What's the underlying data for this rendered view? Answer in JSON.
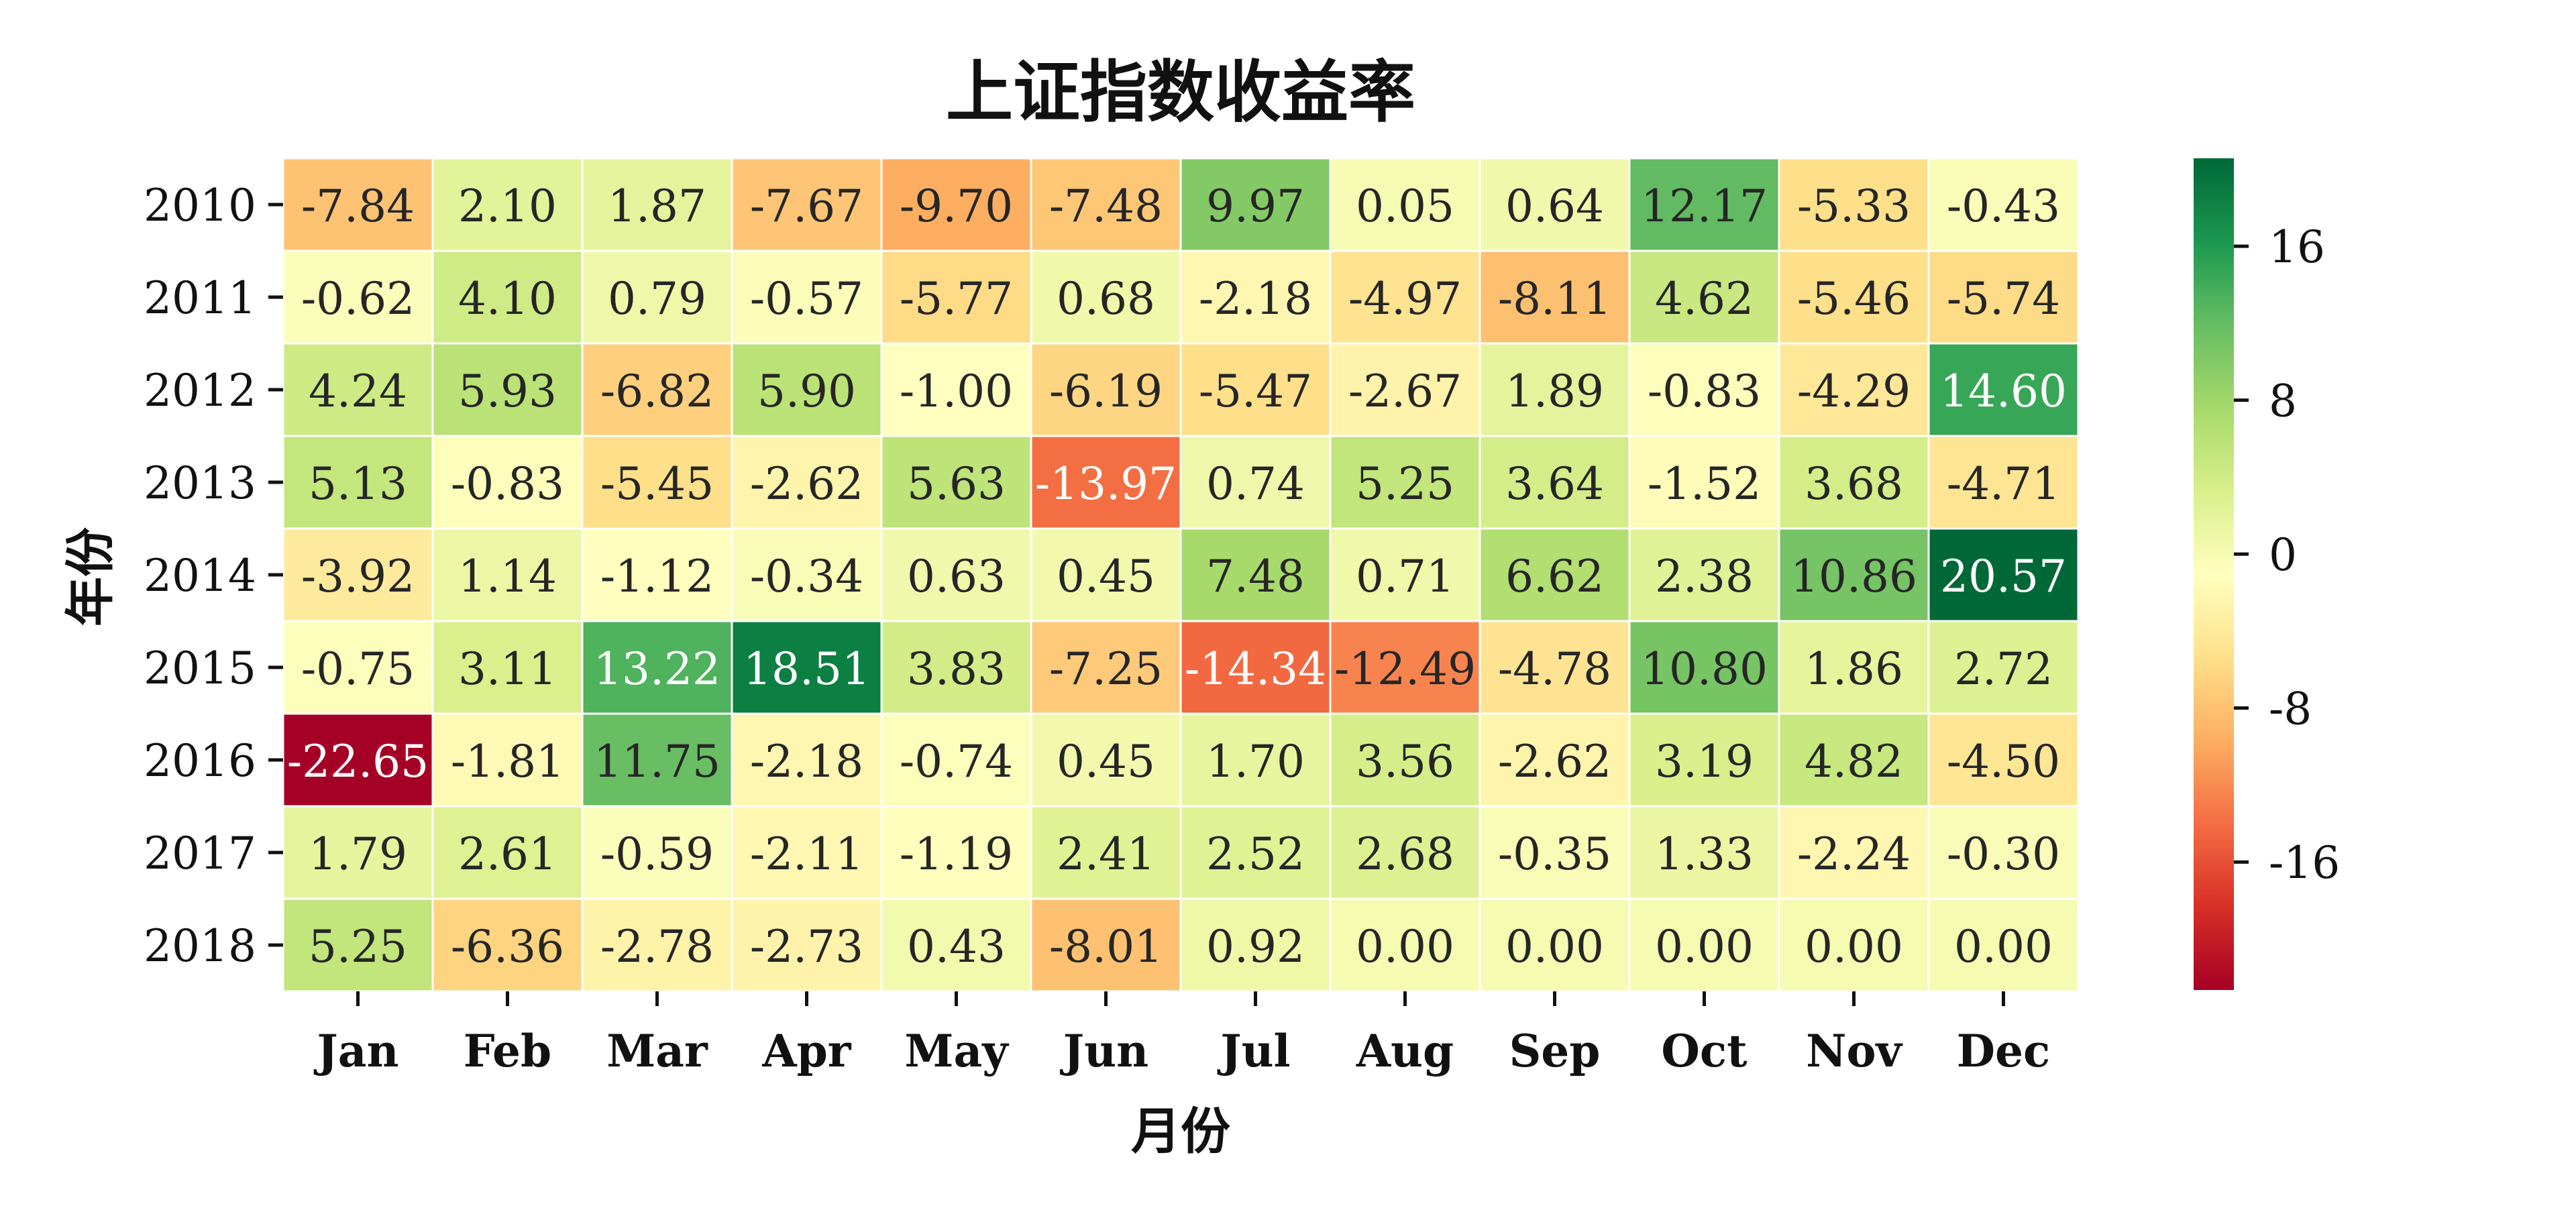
{
  "chart_data": {
    "type": "heatmap",
    "title": "上证指数收益率",
    "xlabel": "月份",
    "ylabel": "年份",
    "x_categories": [
      "Jan",
      "Feb",
      "Mar",
      "Apr",
      "May",
      "Jun",
      "Jul",
      "Aug",
      "Sep",
      "Oct",
      "Nov",
      "Dec"
    ],
    "y_categories": [
      "2010",
      "2011",
      "2012",
      "2013",
      "2014",
      "2015",
      "2016",
      "2017",
      "2018"
    ],
    "values": [
      [
        -7.84,
        2.1,
        1.87,
        -7.67,
        -9.7,
        -7.48,
        9.97,
        0.05,
        0.64,
        12.17,
        -5.33,
        -0.43
      ],
      [
        -0.62,
        4.1,
        0.79,
        -0.57,
        -5.77,
        0.68,
        -2.18,
        -4.97,
        -8.11,
        4.62,
        -5.46,
        -5.74
      ],
      [
        4.24,
        5.93,
        -6.82,
        5.9,
        -1.0,
        -6.19,
        -5.47,
        -2.67,
        1.89,
        -0.83,
        -4.29,
        14.6
      ],
      [
        5.13,
        -0.83,
        -5.45,
        -2.62,
        5.63,
        -13.97,
        0.74,
        5.25,
        3.64,
        -1.52,
        3.68,
        -4.71
      ],
      [
        -3.92,
        1.14,
        -1.12,
        -0.34,
        0.63,
        0.45,
        7.48,
        0.71,
        6.62,
        2.38,
        10.86,
        20.57
      ],
      [
        -0.75,
        3.11,
        13.22,
        18.51,
        3.83,
        -7.25,
        -14.34,
        -12.49,
        -4.78,
        10.8,
        1.86,
        2.72
      ],
      [
        -22.65,
        -1.81,
        11.75,
        -2.18,
        -0.74,
        0.45,
        1.7,
        3.56,
        -2.62,
        3.19,
        4.82,
        -4.5
      ],
      [
        1.79,
        2.61,
        -0.59,
        -2.11,
        -1.19,
        2.41,
        2.52,
        2.68,
        -0.35,
        1.33,
        -2.24,
        -0.3
      ],
      [
        5.25,
        -6.36,
        -2.78,
        -2.73,
        0.43,
        -8.01,
        0.92,
        0.0,
        0.0,
        0.0,
        0.0,
        0.0
      ]
    ],
    "value_format": "2 decimals",
    "colormap": "RdYlGn",
    "color_range": [
      -22.65,
      20.57
    ],
    "colorbar_ticks": [
      16,
      8,
      0,
      -8,
      -16
    ],
    "grid": false,
    "cell_border_color": "#ffffff"
  }
}
